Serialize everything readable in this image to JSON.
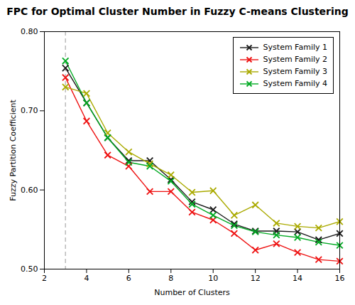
{
  "chart_data": {
    "type": "line",
    "title": "FPC for Optimal Cluster Number in Fuzzy C-means Clustering",
    "x_label": "Number of Clusters",
    "y_label": "Fuzzy Partition Coefficient",
    "x": [
      3,
      4,
      5,
      6,
      7,
      8,
      9,
      10,
      11,
      12,
      13,
      14,
      15,
      16
    ],
    "series": [
      {
        "name": "System Family 1",
        "color": "#1a1a1a",
        "values": [
          0.754,
          0.71,
          0.666,
          0.637,
          0.637,
          0.613,
          0.585,
          0.575,
          0.557,
          0.548,
          0.548,
          0.547,
          0.537,
          0.545
        ]
      },
      {
        "name": "System Family 2",
        "color": "#ee1111",
        "values": [
          0.742,
          0.687,
          0.644,
          0.63,
          0.598,
          0.598,
          0.572,
          0.562,
          0.545,
          0.524,
          0.532,
          0.521,
          0.512,
          0.51
        ]
      },
      {
        "name": "System Family 3",
        "color": "#aaaa00",
        "values": [
          0.73,
          0.722,
          0.672,
          0.648,
          0.633,
          0.619,
          0.597,
          0.599,
          0.568,
          0.581,
          0.558,
          0.554,
          0.552,
          0.56
        ]
      },
      {
        "name": "System Family 4",
        "color": "#00aa22",
        "values": [
          0.763,
          0.71,
          0.666,
          0.635,
          0.63,
          0.611,
          0.582,
          0.568,
          0.555,
          0.547,
          0.543,
          0.54,
          0.534,
          0.53
        ]
      }
    ],
    "xlim": [
      2,
      16
    ],
    "ylim": [
      0.5,
      0.8
    ],
    "xticks": [
      2,
      4,
      6,
      8,
      10,
      12,
      14,
      16
    ],
    "yticks": [
      0.5,
      0.6,
      0.7,
      0.8
    ],
    "vlines": [
      3
    ],
    "marker": "x",
    "grid": false,
    "legend": "upper right"
  }
}
